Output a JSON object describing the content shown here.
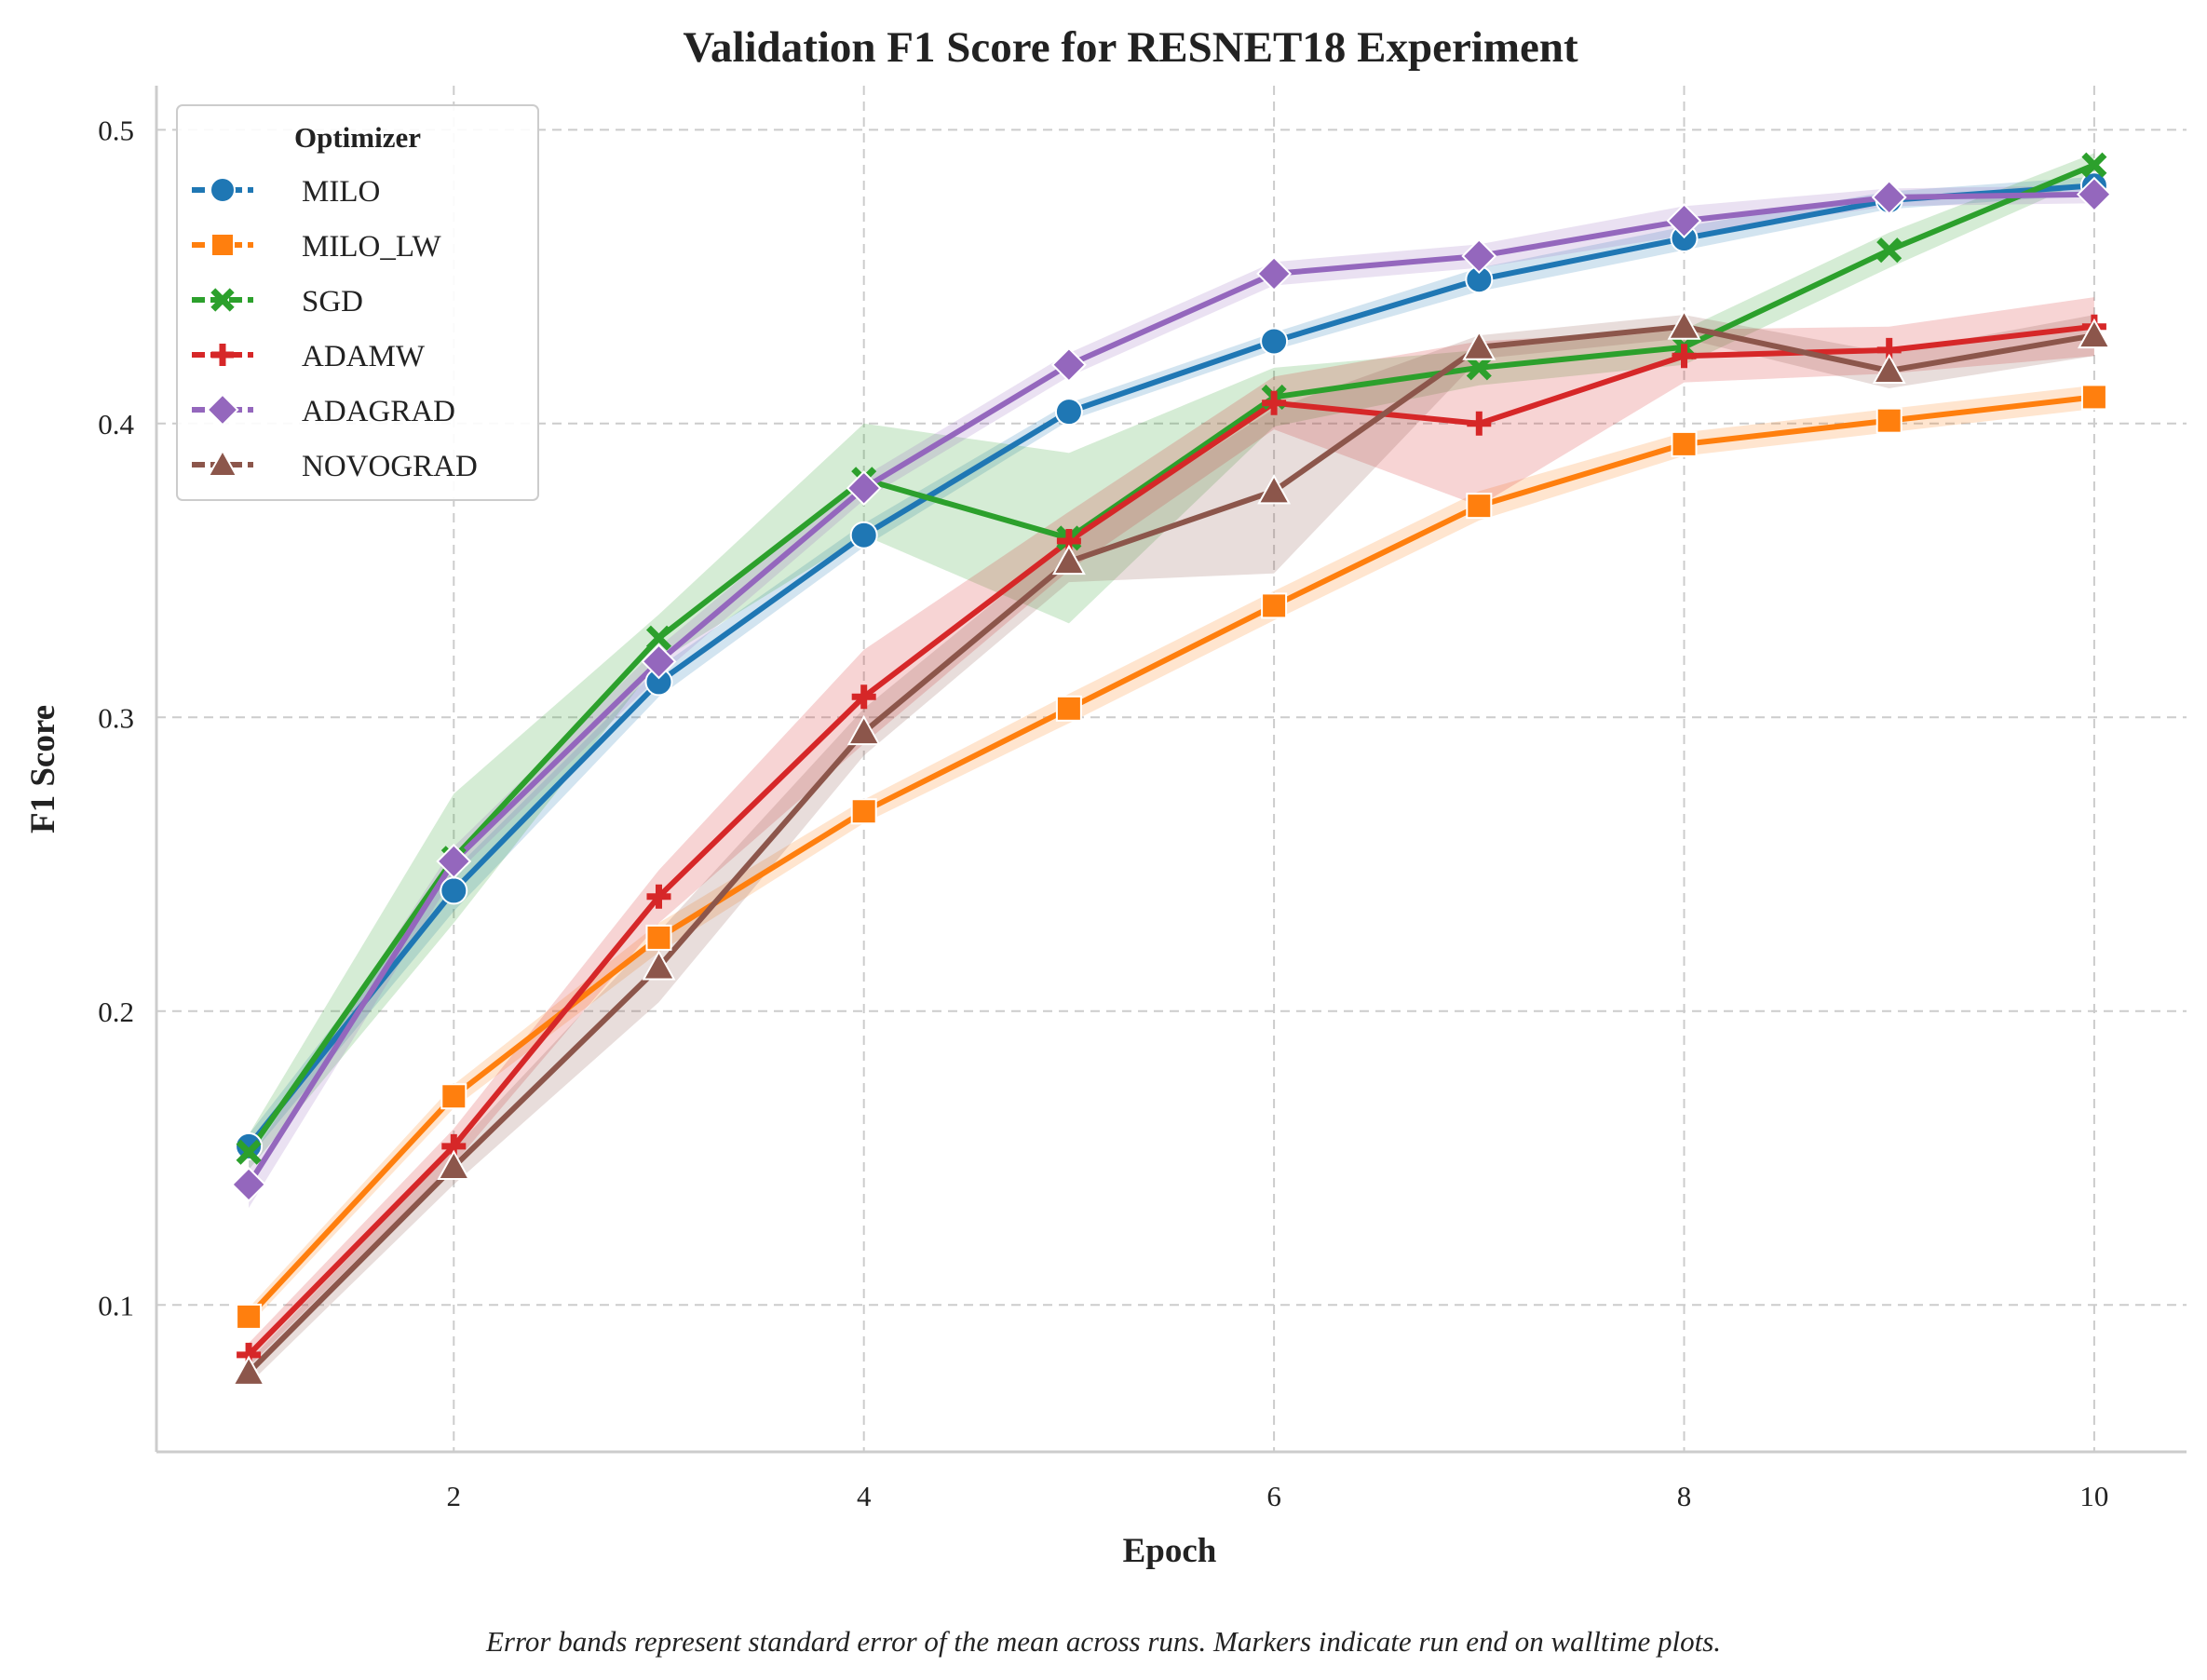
{
  "chart_data": {
    "type": "line",
    "title": "Validation F1 Score for RESNET18 Experiment",
    "xlabel": "Epoch",
    "ylabel": "F1 Score",
    "xlim": [
      0.55,
      10.45
    ],
    "ylim": [
      0.05,
      0.515
    ],
    "xticks": [
      2,
      4,
      6,
      8,
      10
    ],
    "yticks": [
      0.1,
      0.2,
      0.3,
      0.4,
      0.5
    ],
    "grid": true,
    "legend": {
      "title": "Optimizer",
      "placement": "top-left"
    },
    "footnote": "Error bands represent standard error of the mean across runs. Markers indicate run end on walltime plots.",
    "x": [
      1,
      2,
      3,
      4,
      5,
      6,
      7,
      8,
      9,
      10
    ],
    "series": [
      {
        "name": "MILO",
        "color": "#1f77b4",
        "marker": "circle",
        "values": [
          0.154,
          0.241,
          0.312,
          0.362,
          0.404,
          0.428,
          0.449,
          0.463,
          0.476,
          0.481
        ],
        "err": [
          0.004,
          0.007,
          0.005,
          0.004,
          0.003,
          0.003,
          0.004,
          0.004,
          0.003,
          0.003
        ]
      },
      {
        "name": "MILO_LW",
        "color": "#ff7f0e",
        "marker": "square",
        "values": [
          0.096,
          0.171,
          0.225,
          0.268,
          0.303,
          0.338,
          0.372,
          0.393,
          0.401,
          0.409
        ],
        "err": [
          0.003,
          0.004,
          0.005,
          0.004,
          0.005,
          0.005,
          0.005,
          0.004,
          0.004,
          0.004
        ]
      },
      {
        "name": "SGD",
        "color": "#2ca02c",
        "marker": "x",
        "values": [
          0.152,
          0.252,
          0.327,
          0.381,
          0.361,
          0.409,
          0.419,
          0.426,
          0.459,
          0.488
        ],
        "err": [
          0.006,
          0.022,
          0.008,
          0.019,
          0.029,
          0.01,
          0.006,
          0.006,
          0.006,
          0.004
        ]
      },
      {
        "name": "ADAMW",
        "color": "#d62728",
        "marker": "plus",
        "values": [
          0.083,
          0.154,
          0.239,
          0.307,
          0.36,
          0.407,
          0.4,
          0.423,
          0.425,
          0.433
        ],
        "err": [
          0.004,
          0.006,
          0.009,
          0.016,
          0.01,
          0.009,
          0.028,
          0.009,
          0.008,
          0.01
        ]
      },
      {
        "name": "ADAGRAD",
        "color": "#9467bd",
        "marker": "diamond",
        "values": [
          0.141,
          0.251,
          0.319,
          0.378,
          0.42,
          0.451,
          0.457,
          0.469,
          0.477,
          0.478
        ],
        "err": [
          0.008,
          0.005,
          0.005,
          0.004,
          0.004,
          0.004,
          0.004,
          0.005,
          0.003,
          0.003
        ]
      },
      {
        "name": "NOVOGRAD",
        "color": "#8c564b",
        "marker": "triangle",
        "values": [
          0.077,
          0.147,
          0.215,
          0.295,
          0.353,
          0.377,
          0.426,
          0.433,
          0.418,
          0.43
        ],
        "err": [
          0.004,
          0.006,
          0.012,
          0.008,
          0.007,
          0.028,
          0.004,
          0.004,
          0.006,
          0.007
        ]
      }
    ]
  }
}
